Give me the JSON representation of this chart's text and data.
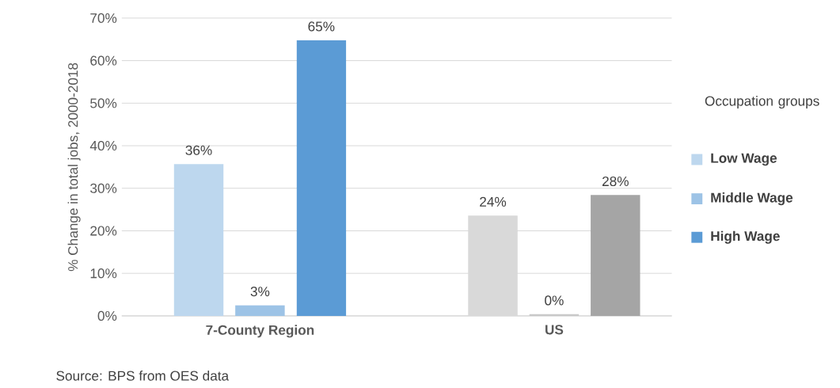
{
  "chart_data": {
    "type": "bar",
    "categories": [
      "7-County Region",
      "US"
    ],
    "series": [
      {
        "name": "Low Wage",
        "colors": [
          "#bdd7ee",
          "#d9d9d9"
        ],
        "values": [
          35.7,
          23.6
        ],
        "value_labels": [
          "36%",
          "24%"
        ]
      },
      {
        "name": "Middle Wage",
        "colors": [
          "#9dc3e6",
          "#c8c8c8"
        ],
        "values": [
          2.5,
          0.4
        ],
        "value_labels": [
          "3%",
          "0%"
        ]
      },
      {
        "name": "High Wage",
        "colors": [
          "#5b9bd5",
          "#a5a5a5"
        ],
        "values": [
          64.8,
          28.4
        ],
        "value_labels": [
          "65%",
          "28%"
        ]
      }
    ],
    "ylabel": "% Change in total jobs, 2000-2018",
    "ylim": [
      0,
      70
    ],
    "yticks": [
      {
        "value": 0,
        "label": "0%"
      },
      {
        "value": 10,
        "label": "10%"
      },
      {
        "value": 20,
        "label": "20%"
      },
      {
        "value": 30,
        "label": "30%"
      },
      {
        "value": 40,
        "label": "40%"
      },
      {
        "value": 50,
        "label": "50%"
      },
      {
        "value": 60,
        "label": "60%"
      },
      {
        "value": 70,
        "label": "70%"
      }
    ],
    "grid": "y",
    "legend": "right",
    "legend_title": "Occupation groups",
    "annotations": [
      "Source: BPS from OES data"
    ]
  }
}
